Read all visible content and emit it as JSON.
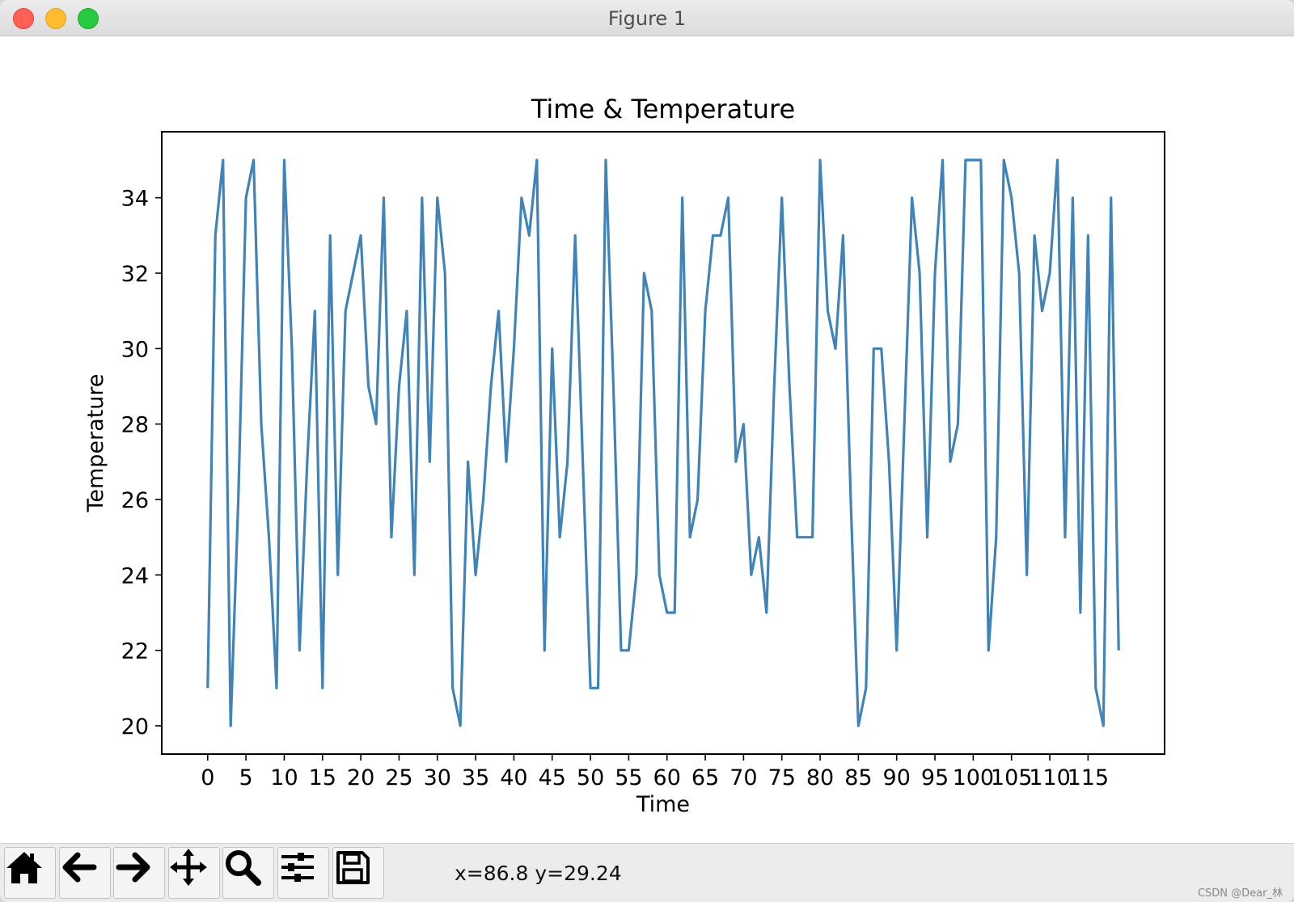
{
  "window": {
    "title": "Figure 1"
  },
  "toolbar": {
    "buttons": [
      {
        "icon": "home-icon"
      },
      {
        "icon": "arrow-left-icon"
      },
      {
        "icon": "arrow-right-icon"
      },
      {
        "icon": "pan-icon"
      },
      {
        "icon": "zoom-icon"
      },
      {
        "icon": "subplots-icon"
      },
      {
        "icon": "save-icon"
      }
    ],
    "coords": "x=86.8 y=29.24"
  },
  "watermark": "CSDN @Dear_林",
  "colors": {
    "line": "#3f83b9"
  },
  "chart_data": {
    "type": "line",
    "title": "Time & Temperature",
    "xlabel": "Time",
    "ylabel": "Temperature",
    "xlim": [
      -6,
      125
    ],
    "ylim": [
      19.25,
      35.75
    ],
    "xticks": [
      0,
      5,
      10,
      15,
      20,
      25,
      30,
      35,
      40,
      45,
      50,
      55,
      60,
      65,
      70,
      75,
      80,
      85,
      90,
      95,
      100,
      105,
      110,
      115
    ],
    "yticks": [
      20,
      22,
      24,
      26,
      28,
      30,
      32,
      34
    ],
    "x": [
      0,
      1,
      2,
      3,
      4,
      5,
      6,
      7,
      8,
      9,
      10,
      11,
      12,
      13,
      14,
      15,
      16,
      17,
      18,
      19,
      20,
      21,
      22,
      23,
      24,
      25,
      26,
      27,
      28,
      29,
      30,
      31,
      32,
      33,
      34,
      35,
      36,
      37,
      38,
      39,
      40,
      41,
      42,
      43,
      44,
      45,
      46,
      47,
      48,
      49,
      50,
      51,
      52,
      53,
      54,
      55,
      56,
      57,
      58,
      59,
      60,
      61,
      62,
      63,
      64,
      65,
      66,
      67,
      68,
      69,
      70,
      71,
      72,
      73,
      74,
      75,
      76,
      77,
      78,
      79,
      80,
      81,
      82,
      83,
      84,
      85,
      86,
      87,
      88,
      89,
      90,
      91,
      92,
      93,
      94,
      95,
      96,
      97,
      98,
      99,
      100,
      101,
      102,
      103,
      104,
      105,
      106,
      107,
      108,
      109,
      110,
      111,
      112,
      113,
      114,
      115,
      116,
      117,
      118,
      119
    ],
    "y": [
      21,
      33,
      35,
      20,
      26,
      34,
      35,
      28,
      25,
      21,
      35,
      30,
      22,
      27,
      31,
      21,
      33,
      24,
      31,
      32,
      33,
      29,
      28,
      34,
      25,
      29,
      31,
      24,
      34,
      27,
      34,
      32,
      21,
      20,
      27,
      24,
      26,
      29,
      31,
      27,
      30,
      34,
      33,
      35,
      22,
      30,
      25,
      27,
      33,
      27,
      21,
      21,
      35,
      29,
      22,
      22,
      24,
      32,
      31,
      24,
      23,
      23,
      34,
      25,
      26,
      31,
      33,
      33,
      34,
      27,
      28,
      24,
      25,
      23,
      29,
      34,
      29,
      25,
      25,
      25,
      35,
      31,
      30,
      33,
      26,
      20,
      21,
      30,
      30,
      27,
      22,
      28,
      34,
      32,
      25,
      32,
      35,
      27,
      28,
      35,
      35,
      35,
      22,
      25,
      35,
      34,
      32,
      24,
      33,
      31,
      32,
      35,
      25,
      34,
      23,
      33,
      21,
      20,
      34,
      22
    ]
  }
}
